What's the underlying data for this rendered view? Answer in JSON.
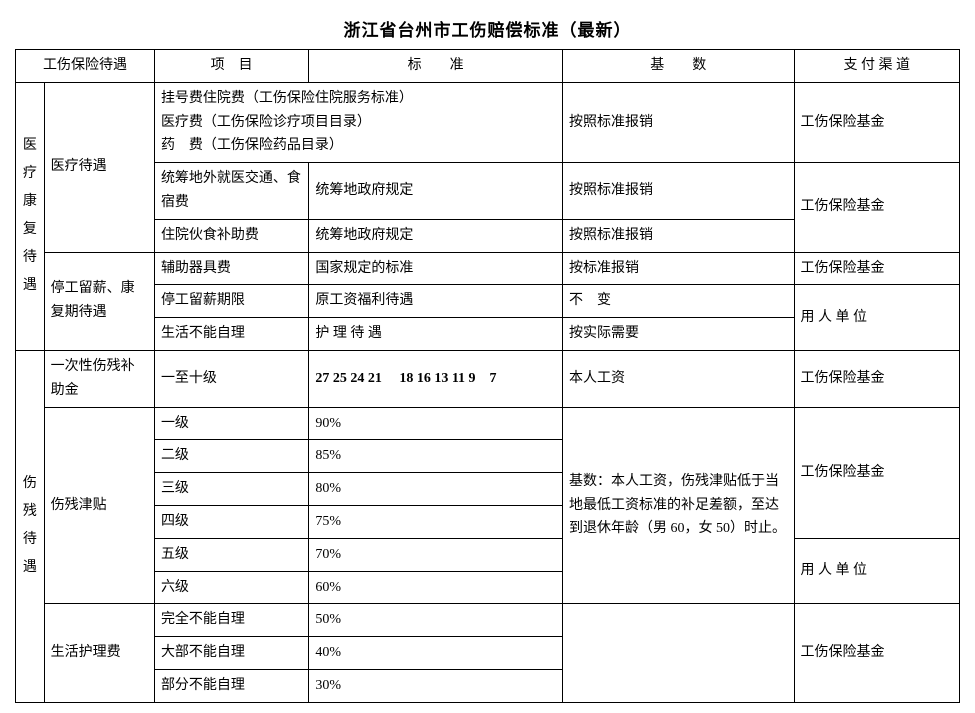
{
  "title": "浙江省台州市工伤赔偿标准（最新）",
  "headers": {
    "c1": "工伤保险待遇",
    "c2": "项　目",
    "c3": "标　　准",
    "c4": "基　　数",
    "c5": "支 付 渠 道"
  },
  "cat1": {
    "main": "医疗康复待遇",
    "sub1": "医疗待遇",
    "sub2": "停工留薪、康复期待遇",
    "r1_proj": "挂号费住院费（工伤保险住院服务标准）\n医疗费（工伤保险诊疗项目目录）\n药　费（工伤保险药品目录）",
    "r1_base": "按照标准报销",
    "r1_pay": "工伤保险基金",
    "r2_proj": "统筹地外就医交通、食宿费",
    "r2_std": "统筹地政府规定",
    "r2_base": "按照标准报销",
    "r23_pay": "工伤保险基金",
    "r3_proj": "住院伙食补助费",
    "r3_std": "统筹地政府规定",
    "r3_base": "按照标准报销",
    "r4_proj": "辅助器具费",
    "r4_std": "国家规定的标准",
    "r4_base": "按标准报销",
    "r4_pay": "工伤保险基金",
    "r5_proj": "停工留薪期限",
    "r5_std": "原工资福利待遇",
    "r5_base": "不　变",
    "r56_pay": "用 人 单 位",
    "r6_proj": "生活不能自理",
    "r6_std": "护 理 待 遇",
    "r6_base": "按实际需要"
  },
  "cat2": {
    "main": "伤残待遇",
    "sub1": "一次性伤残补助金",
    "sub2": "伤残津贴",
    "sub3": "生活护理费",
    "r7_proj": "一至十级",
    "r7_std": "27 25 24 21　 18 16 13 11 9　7",
    "r7_base": "本人工资",
    "r7_pay": "工伤保险基金",
    "lv1": "一级",
    "pct1": "90%",
    "lv2": "二级",
    "pct2": "85%",
    "lv3": "三级",
    "pct3": "80%",
    "lv4": "四级",
    "pct4": "75%",
    "lv5": "五级",
    "pct5": "70%",
    "lv6": "六级",
    "pct6": "60%",
    "base_note": "基数：本人工资，伤残津贴低于当地最低工资标准的补足差额，至达到退休年龄（男 60，女 50）时止。",
    "pay_fund": "工伤保险基金",
    "pay_employer": "用 人 单 位",
    "care1": "完全不能自理",
    "care1p": "50%",
    "care2": "大部不能自理",
    "care2p": "40%",
    "care3": "部分不能自理",
    "care3p": "30%",
    "care_pay": "工伤保险基金"
  }
}
